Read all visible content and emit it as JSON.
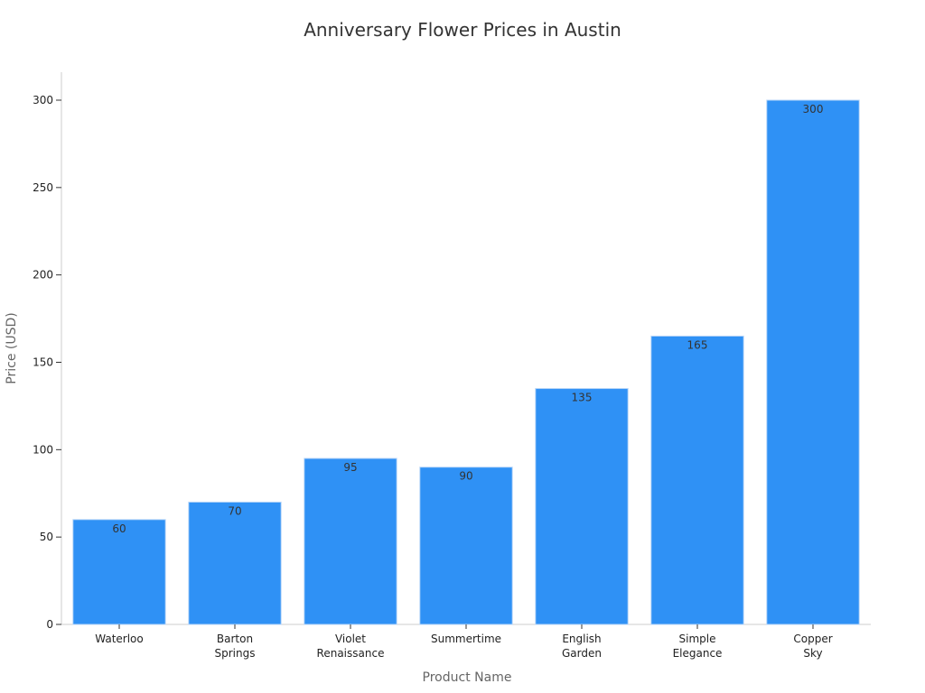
{
  "chart_data": {
    "type": "bar",
    "title": "Anniversary Flower Prices in Austin",
    "xlabel": "Product Name",
    "ylabel": "Price (USD)",
    "categories": [
      [
        "Waterloo"
      ],
      [
        "Barton",
        "Springs"
      ],
      [
        "Violet",
        "Renaissance"
      ],
      [
        "Summertime"
      ],
      [
        "English",
        "Garden"
      ],
      [
        "Simple",
        "Elegance"
      ],
      [
        "Copper",
        "Sky"
      ]
    ],
    "values": [
      60,
      70,
      95,
      90,
      135,
      165,
      300
    ],
    "ylim": [
      0,
      300
    ],
    "yticks": [
      0,
      50,
      100,
      150,
      200,
      250,
      300
    ],
    "bar_color": "#2f91f5",
    "grid": false,
    "data_labels": true
  }
}
